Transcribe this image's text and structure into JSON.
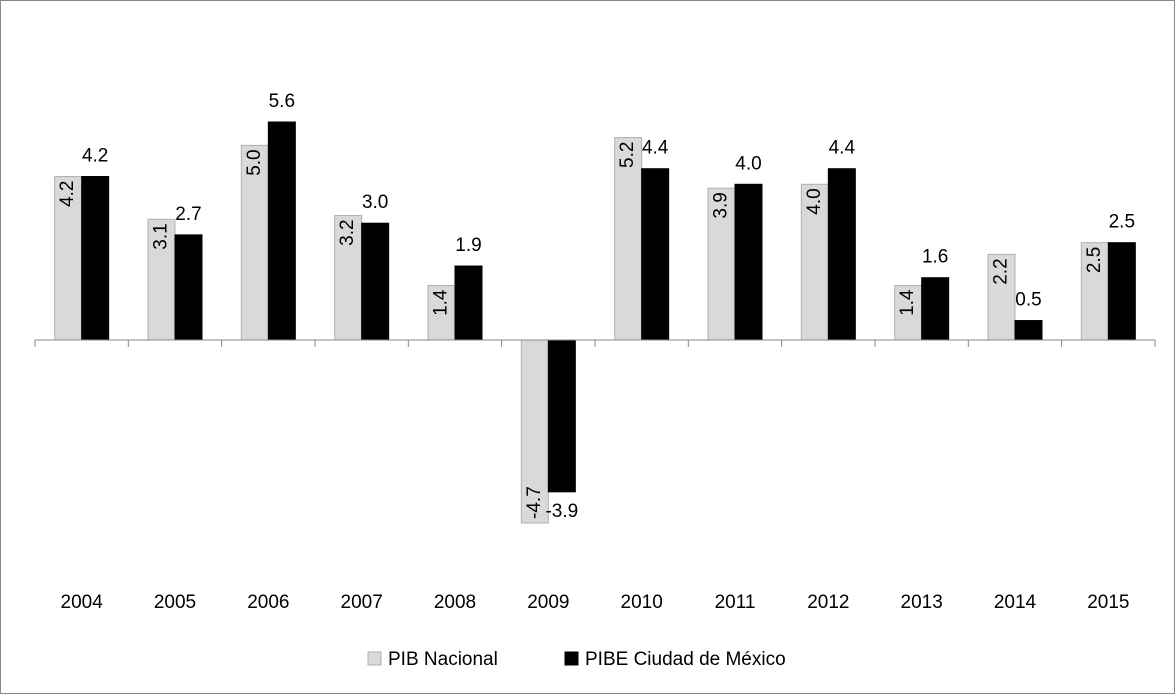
{
  "chart_data": {
    "type": "bar",
    "categories": [
      "2004",
      "2005",
      "2006",
      "2007",
      "2008",
      "2009",
      "2010",
      "2011",
      "2012",
      "2013",
      "2014",
      "2015"
    ],
    "series": [
      {
        "name": "PIB Nacional",
        "color": "#d9d9d9",
        "values": [
          4.2,
          3.1,
          5.0,
          3.2,
          1.4,
          -4.7,
          5.2,
          3.9,
          4.0,
          1.4,
          2.2,
          2.5
        ],
        "value_labels": [
          "4.2",
          "3.1",
          "5.0",
          "3.2",
          "1.4",
          "-4.7",
          "5.2",
          "3.9",
          "4.0",
          "1.4",
          "2.2",
          "2.5"
        ]
      },
      {
        "name": "PIBE Ciudad de México",
        "color": "#000000",
        "values": [
          4.2,
          2.7,
          5.6,
          3.0,
          1.9,
          -3.9,
          4.4,
          4.0,
          4.4,
          1.6,
          0.5,
          2.5
        ],
        "value_labels": [
          "4.2",
          "2.7",
          "5.6",
          "3.0",
          "1.9",
          "-3.9",
          "4.4",
          "4.0",
          "4.4",
          "1.6",
          "0.5",
          "2.5"
        ]
      }
    ],
    "legend": "bottom"
  }
}
